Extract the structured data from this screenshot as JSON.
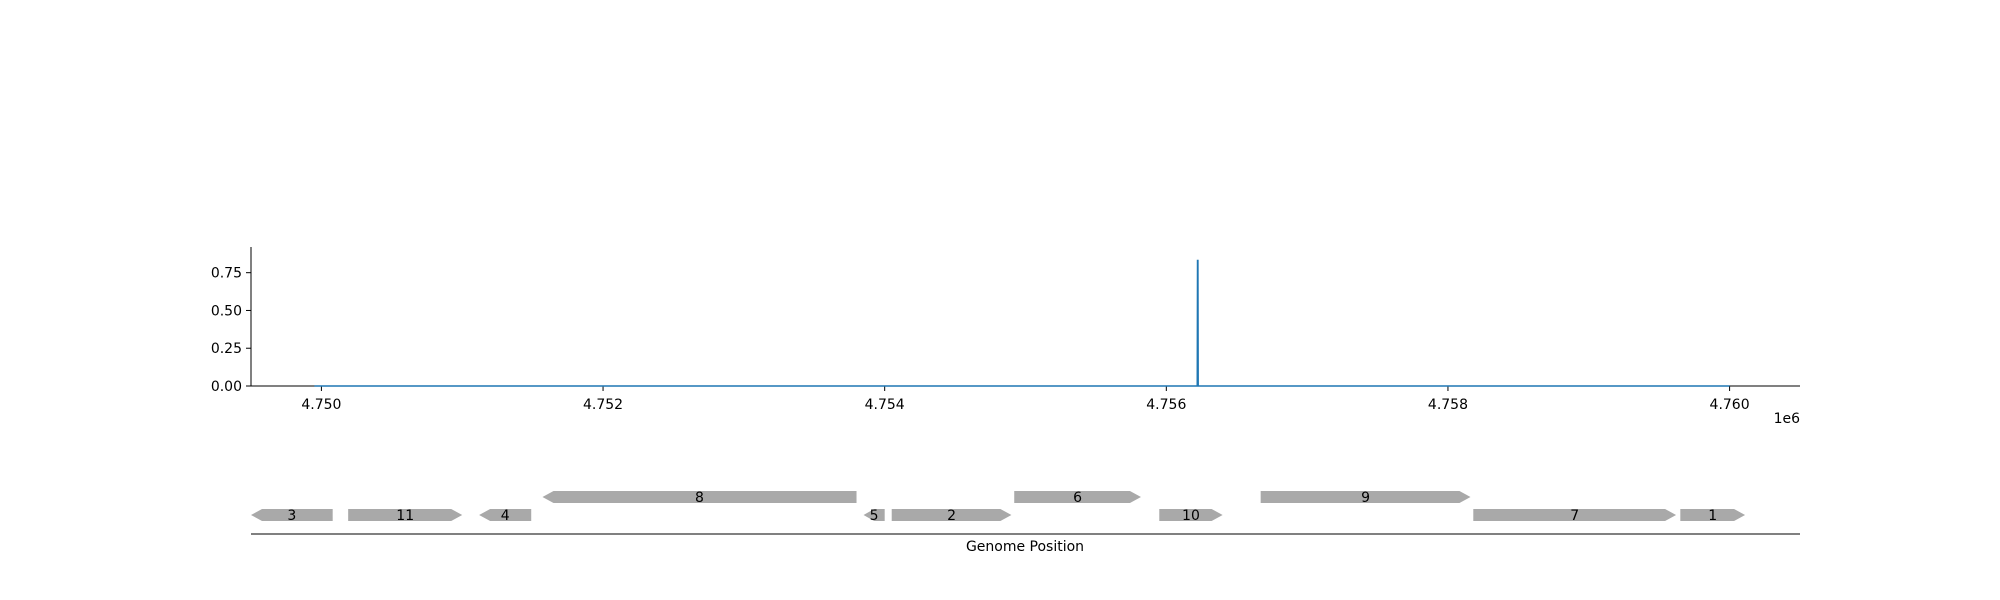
{
  "chart_data": [
    {
      "type": "line",
      "series_color": "#1f77b4",
      "x": [
        4749950,
        4756220,
        4756222,
        4756224,
        4756226,
        4760000
      ],
      "y": [
        0,
        0,
        0.83,
        0.83,
        0,
        0
      ],
      "xlim": [
        4749500,
        4760500
      ],
      "ylim": [
        0,
        0.92
      ],
      "x_ticks": [
        4750000,
        4752000,
        4754000,
        4756000,
        4758000,
        4760000
      ],
      "x_tick_labels": [
        "4.750",
        "4.752",
        "4.754",
        "4.756",
        "4.758",
        "4.760"
      ],
      "x_offset_label": "1e6",
      "y_ticks": [
        0,
        0.25,
        0.5,
        0.75
      ],
      "y_tick_labels": [
        "0.00",
        "0.25",
        "0.50",
        "0.75"
      ],
      "grid": false
    },
    {
      "type": "gene-map",
      "xlabel": "Genome Position",
      "feature_color": "#a9a9a9",
      "xlim": [
        4749500,
        4760500
      ],
      "genes": [
        {
          "label": "3",
          "start": 4749500,
          "end": 4750080,
          "strand": "-",
          "row": 0
        },
        {
          "label": "11",
          "start": 4750190,
          "end": 4751000,
          "strand": "+",
          "row": 0
        },
        {
          "label": "4",
          "start": 4751120,
          "end": 4751490,
          "strand": "-",
          "row": 0
        },
        {
          "label": "8",
          "start": 4751570,
          "end": 4753800,
          "strand": "-",
          "row": 1
        },
        {
          "label": "5",
          "start": 4753850,
          "end": 4754000,
          "strand": "-",
          "row": 0
        },
        {
          "label": "2",
          "start": 4754050,
          "end": 4754900,
          "strand": "+",
          "row": 0
        },
        {
          "label": "6",
          "start": 4754920,
          "end": 4755820,
          "strand": "+",
          "row": 1
        },
        {
          "label": "10",
          "start": 4755950,
          "end": 4756400,
          "strand": "+",
          "row": 0
        },
        {
          "label": "9",
          "start": 4756670,
          "end": 4758160,
          "strand": "+",
          "row": 1
        },
        {
          "label": "7",
          "start": 4758180,
          "end": 4759620,
          "strand": "+",
          "row": 0
        },
        {
          "label": "1",
          "start": 4759650,
          "end": 4760110,
          "strand": "+",
          "row": 0
        }
      ]
    }
  ]
}
